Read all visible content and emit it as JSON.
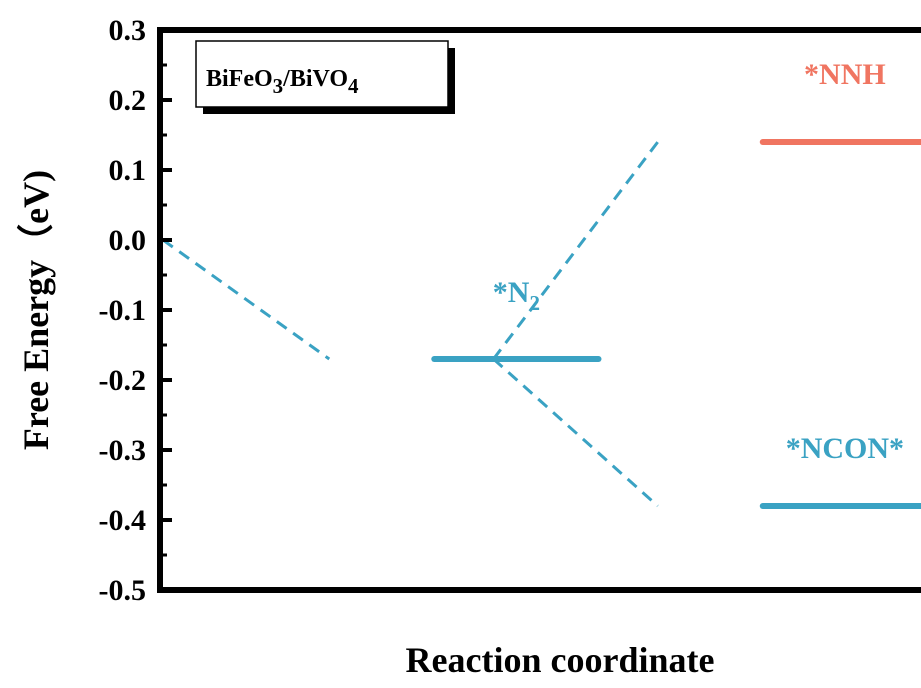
{
  "chart_data": {
    "type": "line",
    "ylabel": "Free Energy（eV)",
    "xlabel": "Reaction coordinate",
    "ylim": [
      -0.5,
      0.3
    ],
    "yticks": [
      "0.3",
      "0.2",
      "0.1",
      "0.0",
      "-0.1",
      "-0.2",
      "-0.3",
      "-0.4",
      "-0.5"
    ],
    "inset_label": {
      "base1": "BiFeO",
      "sub1": "3",
      "mid": "/BiVO",
      "sub2": "4"
    },
    "levels": [
      {
        "start": 0.0,
        "end": 0.0,
        "value": 0.0
      },
      {
        "label_base": "*N",
        "label_sub": "2",
        "start": 1.0,
        "end": 2.0,
        "value": -0.17,
        "color": "#3aa2c3"
      },
      {
        "label_base": "*NNH",
        "label_sub": "",
        "start": 3.0,
        "end": 4.0,
        "value": 0.14,
        "color": "#f07561"
      },
      {
        "label_base": "*NCON*",
        "label_sub": "",
        "start": 3.0,
        "end": 4.0,
        "value": -0.38,
        "color": "#3aa2c3"
      }
    ],
    "connectors": [
      {
        "from": [
          0.0,
          0.0
        ],
        "to": [
          1.0,
          -0.17
        ]
      },
      {
        "from": [
          2.0,
          -0.17
        ],
        "to": [
          3.0,
          0.14
        ]
      },
      {
        "from": [
          2.0,
          -0.17
        ],
        "to": [
          3.0,
          -0.38
        ]
      }
    ],
    "connector_color": "#3aa2c3",
    "xlim": [
      0.0,
      4.0
    ]
  }
}
